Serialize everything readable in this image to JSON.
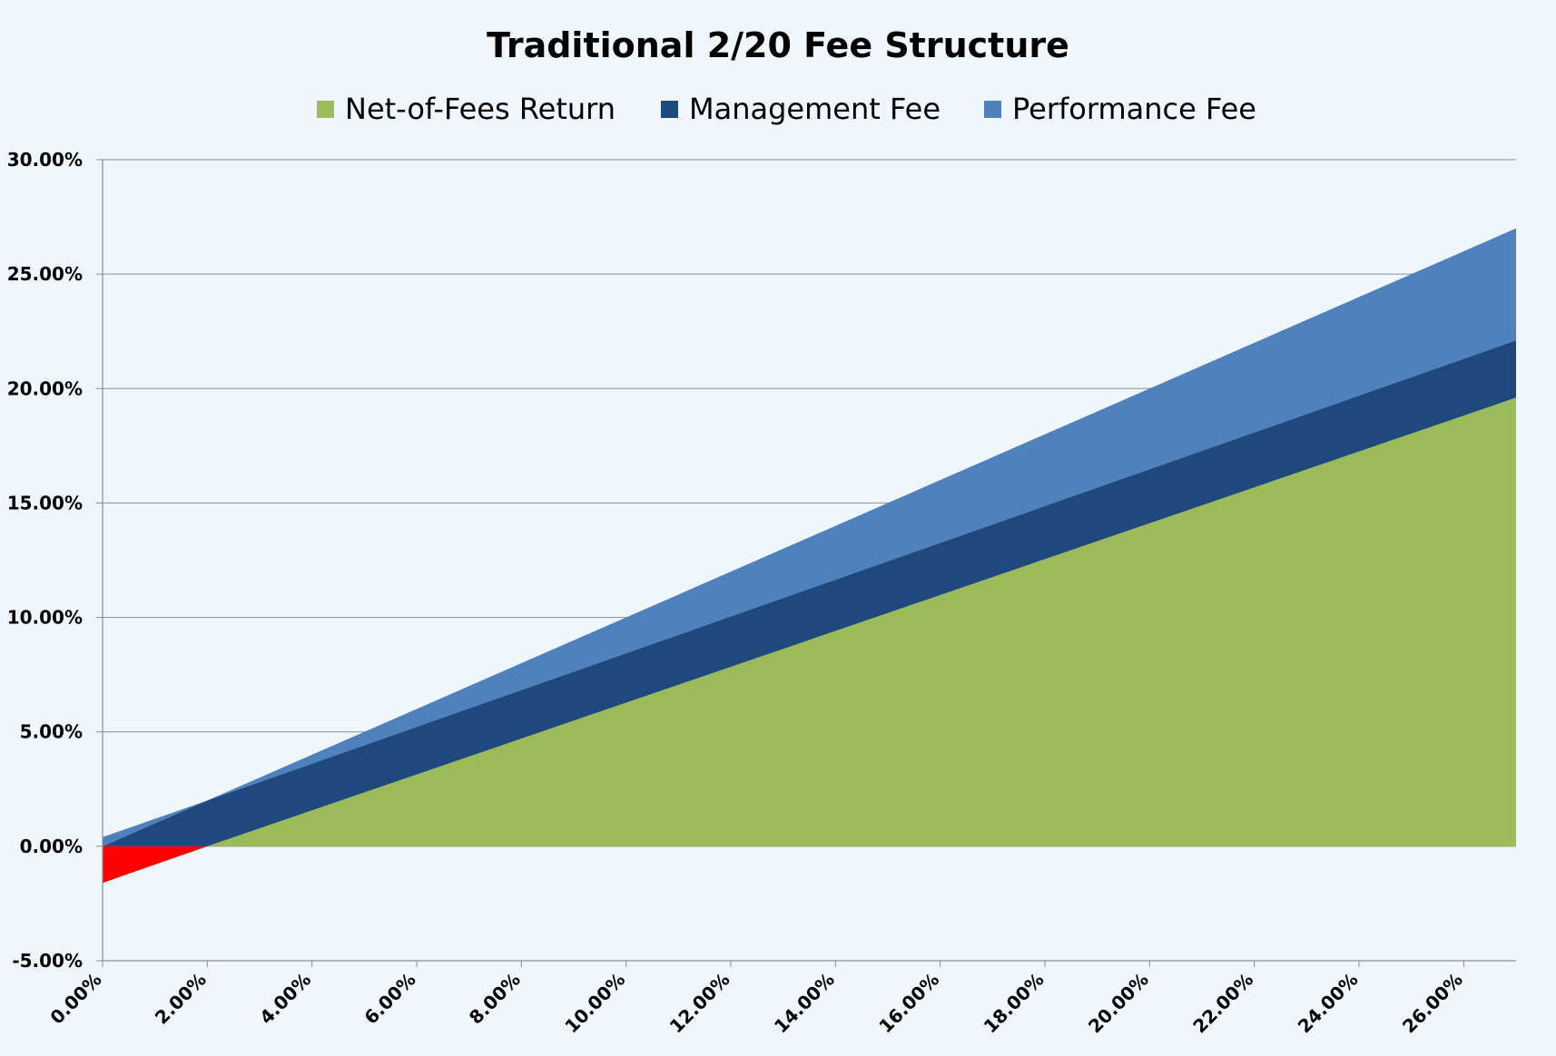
{
  "chart_data": {
    "type": "area",
    "title": "Traditional 2/20 Fee Structure",
    "xlabel": "",
    "ylabel": "",
    "x_range": [
      0,
      27
    ],
    "ylim": [
      -5,
      30
    ],
    "grid": true,
    "legend_position": "top",
    "x_ticks": [
      "0.00%",
      "2.00%",
      "4.00%",
      "6.00%",
      "8.00%",
      "10.00%",
      "12.00%",
      "14.00%",
      "16.00%",
      "18.00%",
      "20.00%",
      "22.00%",
      "24.00%",
      "26.00%"
    ],
    "y_ticks": [
      "30.00%",
      "25.00%",
      "20.00%",
      "15.00%",
      "10.00%",
      "5.00%",
      "0.00%",
      "-5.00%"
    ],
    "x": [
      0,
      2,
      27
    ],
    "series": [
      {
        "name": "Net-of-Fees Return",
        "color": "#9bbb59",
        "values": [
          -1.6,
          0,
          19.6
        ]
      },
      {
        "name": "Management Fee",
        "color": "#1f497d",
        "values": [
          1.6,
          2,
          2.5
        ]
      },
      {
        "name": "Performance Fee",
        "color": "#4f81bd",
        "values": [
          0.4,
          0,
          4.9
        ]
      }
    ],
    "negative_color": "#ff0000"
  }
}
